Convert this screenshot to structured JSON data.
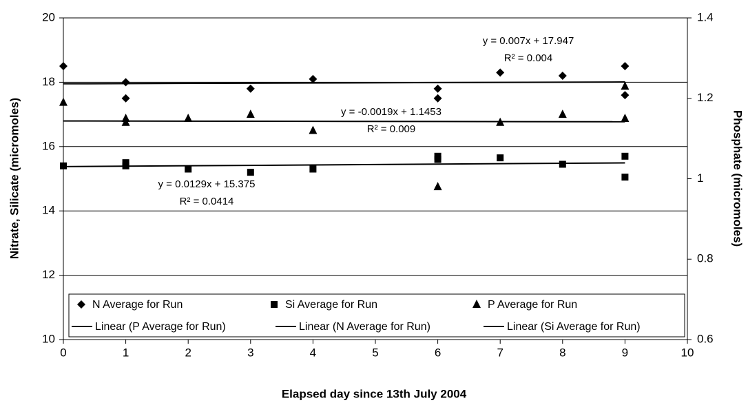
{
  "chart_data": {
    "type": "scatter",
    "xlabel": "Elapsed day since 13th July 2004",
    "ylabel": "Nitrate, Silicate (micromoles)",
    "y2label": "Phosphate (micromoles)",
    "xlim": [
      0,
      10
    ],
    "xticks": [
      0,
      1,
      2,
      3,
      4,
      5,
      6,
      7,
      8,
      9,
      10
    ],
    "ylim": [
      10,
      20
    ],
    "yticks": [
      10,
      12,
      14,
      16,
      18,
      20
    ],
    "y2lim": [
      0.6,
      1.4
    ],
    "y2ticks": [
      0.6,
      0.8,
      1,
      1.2,
      1.4
    ],
    "grid": true,
    "series": [
      {
        "name": "N Average for Run",
        "trend_name": "Linear (N Average for Run)",
        "marker": "diamond",
        "color": "#000000",
        "x": [
          0,
          1,
          1,
          3,
          4,
          6,
          6,
          7,
          8,
          9,
          9
        ],
        "values": [
          18.5,
          18.0,
          17.5,
          17.8,
          18.1,
          17.8,
          17.5,
          18.3,
          18.2,
          18.5,
          17.6
        ],
        "equation": "y = 0.007x + 17.947",
        "r2": "R² = 0.004"
      },
      {
        "name": "Si Average for Run",
        "trend_name": "Linear (Si Average for Run)",
        "marker": "square",
        "color": "#000000",
        "x": [
          0,
          1,
          1,
          2,
          3,
          4,
          6,
          6,
          7,
          8,
          9,
          9
        ],
        "values": [
          15.4,
          15.5,
          15.4,
          15.3,
          15.2,
          15.3,
          15.7,
          15.6,
          15.65,
          15.45,
          15.7,
          15.05
        ],
        "equation": "y = 0.0129x + 15.375",
        "r2": "R² = 0.0414"
      },
      {
        "name": "P Average for Run",
        "trend_name": "Linear (P Average for Run)",
        "marker": "triangle",
        "color": "#000000",
        "axis": "y2",
        "x": [
          0,
          1,
          1,
          2,
          3,
          4,
          6,
          7,
          8,
          9,
          9
        ],
        "values": [
          1.19,
          1.15,
          1.14,
          1.15,
          1.16,
          1.12,
          0.98,
          1.14,
          1.16,
          1.23,
          1.15
        ],
        "equation": "y = -0.0019x + 1.1453",
        "r2": "R² = 0.009"
      }
    ]
  }
}
